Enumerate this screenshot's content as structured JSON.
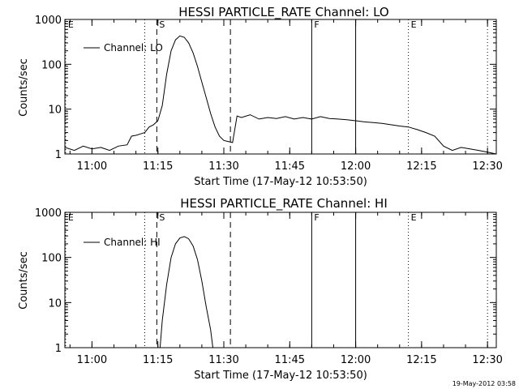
{
  "footer_timestamp": "19-May-2012 03:58",
  "chart_data": [
    {
      "type": "line",
      "title": "HESSI PARTICLE_RATE Channel: LO",
      "xlabel": "Start Time (17-May-12 10:53:50)",
      "ylabel": "Counts/sec",
      "yscale": "log",
      "ylim": [
        1,
        1000
      ],
      "xlim": [
        "10:53:50",
        "12:32:00"
      ],
      "x_ticks": [
        "11:00",
        "11:15",
        "11:30",
        "11:45",
        "12:00",
        "12:15",
        "12:30"
      ],
      "y_ticks": [
        "1",
        "10",
        "100",
        "1000"
      ],
      "legend": {
        "label": "Channel: LO",
        "position": "top-left"
      },
      "markers": [
        {
          "time": "10:54:00",
          "label": "E",
          "style": "dotted"
        },
        {
          "time": "11:12:00",
          "label": "",
          "style": "dotted"
        },
        {
          "time": "11:14:45",
          "label": "S",
          "style": "dashed"
        },
        {
          "time": "11:31:30",
          "label": "",
          "style": "dashed"
        },
        {
          "time": "11:50:00",
          "label": "F",
          "style": "solid"
        },
        {
          "time": "12:00:00",
          "label": "",
          "style": "solid"
        },
        {
          "time": "12:12:00",
          "label": "E",
          "style": "dotted"
        },
        {
          "time": "12:30:00",
          "label": "",
          "style": "dotted"
        }
      ],
      "series": [
        {
          "name": "Channel: LO",
          "x": [
            "10:53:50",
            "10:56",
            "10:58",
            "11:00",
            "11:02",
            "11:04",
            "11:06",
            "11:08",
            "11:09",
            "11:10",
            "11:11",
            "11:12",
            "11:13",
            "11:14",
            "11:15",
            "11:16",
            "11:17",
            "11:18",
            "11:19",
            "11:20",
            "11:21",
            "11:22",
            "11:23",
            "11:24",
            "11:25",
            "11:26",
            "11:27",
            "11:28",
            "11:29",
            "11:30",
            "11:31",
            "11:32",
            "11:33",
            "11:34",
            "11:36",
            "11:38",
            "11:40",
            "11:42",
            "11:44",
            "11:46",
            "11:48",
            "11:50",
            "11:52",
            "11:54",
            "11:56",
            "11:58",
            "12:00",
            "12:02",
            "12:04",
            "12:06",
            "12:08",
            "12:10",
            "12:12",
            "12:14",
            "12:16",
            "12:18",
            "12:20",
            "12:22",
            "12:24",
            "12:26",
            "12:28",
            "12:30",
            "12:32"
          ],
          "y": [
            1.4,
            1.2,
            1.5,
            1.3,
            1.4,
            1.2,
            1.5,
            1.6,
            2.5,
            2.6,
            2.8,
            3.0,
            4.0,
            4.5,
            5.5,
            12,
            60,
            200,
            350,
            430,
            400,
            300,
            180,
            90,
            40,
            18,
            8,
            4,
            2.5,
            2.0,
            1.9,
            1.8,
            7.0,
            6.5,
            7.5,
            6.0,
            6.5,
            6.2,
            6.8,
            6.0,
            6.5,
            6.0,
            6.8,
            6.2,
            6.0,
            5.8,
            5.5,
            5.2,
            5.0,
            4.8,
            4.5,
            4.2,
            4.0,
            3.5,
            3.0,
            2.5,
            1.5,
            1.2,
            1.4,
            1.3,
            1.2,
            1.1,
            1.0
          ]
        }
      ]
    },
    {
      "type": "line",
      "title": "HESSI PARTICLE_RATE Channel: HI",
      "xlabel": "Start Time (17-May-12 10:53:50)",
      "ylabel": "Counts/sec",
      "yscale": "log",
      "ylim": [
        1,
        1000
      ],
      "xlim": [
        "10:53:50",
        "12:32:00"
      ],
      "x_ticks": [
        "11:00",
        "11:15",
        "11:30",
        "11:45",
        "12:00",
        "12:15",
        "12:30"
      ],
      "y_ticks": [
        "1",
        "10",
        "100",
        "1000"
      ],
      "legend": {
        "label": "Channel: HI",
        "position": "top-left"
      },
      "markers": [
        {
          "time": "10:54:00",
          "label": "E",
          "style": "dotted"
        },
        {
          "time": "11:12:00",
          "label": "",
          "style": "dotted"
        },
        {
          "time": "11:14:45",
          "label": "S",
          "style": "dashed"
        },
        {
          "time": "11:31:30",
          "label": "",
          "style": "dashed"
        },
        {
          "time": "11:50:00",
          "label": "F",
          "style": "solid"
        },
        {
          "time": "12:00:00",
          "label": "",
          "style": "solid"
        },
        {
          "time": "12:12:00",
          "label": "E",
          "style": "dotted"
        },
        {
          "time": "12:30:00",
          "label": "",
          "style": "dotted"
        }
      ],
      "series": [
        {
          "name": "Channel: HI",
          "x": [
            "11:15:30",
            "11:16",
            "11:17",
            "11:18",
            "11:19",
            "11:20",
            "11:21",
            "11:22",
            "11:23",
            "11:24",
            "11:25",
            "11:26",
            "11:27",
            "11:27:30"
          ],
          "y": [
            1.0,
            4,
            25,
            100,
            200,
            270,
            290,
            260,
            180,
            90,
            30,
            8,
            2.5,
            1.0
          ]
        }
      ]
    }
  ]
}
